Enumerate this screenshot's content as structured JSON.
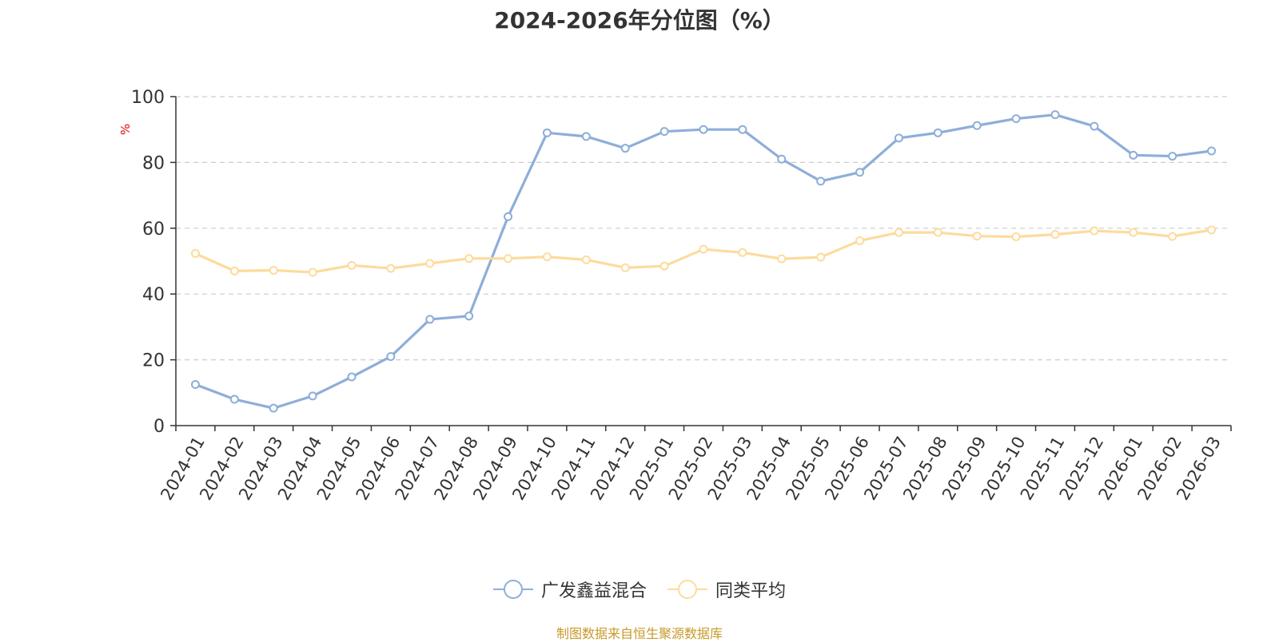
{
  "chart_data": {
    "type": "line",
    "title": "2024-2026年分位图（%）",
    "ylabel": "%",
    "xlabel": "",
    "ylim": [
      0,
      100
    ],
    "yticks": [
      "0",
      "20",
      "40",
      "60",
      "80",
      "100"
    ],
    "grid": true,
    "legend_position": "bottom",
    "categories": [
      "2024-01",
      "2024-02",
      "2024-03",
      "2024-04",
      "2024-05",
      "2024-06",
      "2024-07",
      "2024-08",
      "2024-09",
      "2024-10",
      "2024-11",
      "2024-12",
      "2025-01",
      "2025-02",
      "2025-03",
      "2025-04",
      "2025-05",
      "2025-06",
      "2025-07",
      "2025-08",
      "2025-09",
      "2025-10",
      "2025-11",
      "2025-12",
      "2026-01",
      "2026-02",
      "2026-03"
    ],
    "series": [
      {
        "name": "广发鑫益混合",
        "color": "#8eaed9",
        "values": [
          12.5,
          8.0,
          5.3,
          9.0,
          14.8,
          21.0,
          32.3,
          33.3,
          63.5,
          89.0,
          87.9,
          84.3,
          89.4,
          90.0,
          90.0,
          81.0,
          74.3,
          77.0,
          87.4,
          89.0,
          91.2,
          93.3,
          94.5,
          91.0,
          82.2,
          81.9,
          83.5
        ]
      },
      {
        "name": "同类平均",
        "color": "#fddb9c",
        "values": [
          52.3,
          47.0,
          47.2,
          46.6,
          48.7,
          47.8,
          49.3,
          50.8,
          50.8,
          51.3,
          50.4,
          48.0,
          48.5,
          53.6,
          52.6,
          50.7,
          51.2,
          56.2,
          58.7,
          58.7,
          57.6,
          57.4,
          58.1,
          59.2,
          58.7,
          57.5,
          59.5
        ]
      }
    ]
  },
  "source": "制图数据来自恒生聚源数据库"
}
